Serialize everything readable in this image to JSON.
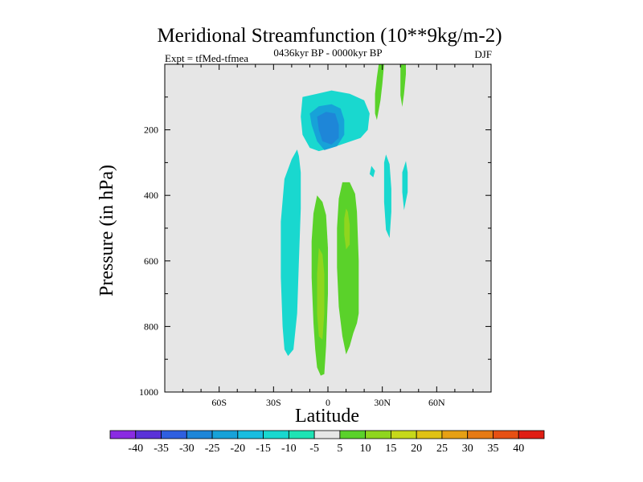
{
  "chart_data": {
    "type": "contour",
    "title": "Meridional Streamfunction (10**9kg/m-2)",
    "left_string": "Expt = tfMed-tfmea",
    "center_string": "0436kyr BP - 0000kyr BP",
    "right_string": "DJF",
    "xlabel": "Latitude",
    "ylabel": "Pressure (in hPa)",
    "x_ticks": [
      "60S",
      "30S",
      "0",
      "30N",
      "60N"
    ],
    "x_tick_values": [
      -60,
      -30,
      0,
      30,
      60
    ],
    "xlim": [
      -90,
      90
    ],
    "y_ticks": [
      "200",
      "400",
      "600",
      "800",
      "1000"
    ],
    "y_tick_values": [
      200,
      400,
      600,
      800,
      1000
    ],
    "ylim": [
      0,
      1000
    ],
    "y_inverted": true,
    "grid": false,
    "background": "#e6e6e6",
    "colorbar": {
      "labels": [
        "-40",
        "-35",
        "-30",
        "-25",
        "-20",
        "-15",
        "-10",
        "-5",
        "5",
        "10",
        "15",
        "20",
        "25",
        "30",
        "35",
        "40"
      ],
      "colors": [
        "#8a2be2",
        "#5a32d8",
        "#2f5fe0",
        "#1e86d8",
        "#17a2d8",
        "#19bde0",
        "#19d8cf",
        "#1ee3b4",
        "#e6e6e6",
        "#5ad22a",
        "#8fd61e",
        "#c6d81a",
        "#e0c214",
        "#e6a014",
        "#e67a14",
        "#e65014",
        "#e01e14"
      ]
    },
    "regions": [
      {
        "level": "-10",
        "color": "#19d8cf",
        "points": [
          [
            -14,
            100
          ],
          [
            -6,
            90
          ],
          [
            2,
            80
          ],
          [
            12,
            90
          ],
          [
            20,
            110
          ],
          [
            23,
            150
          ],
          [
            22,
            200
          ],
          [
            18,
            225
          ],
          [
            10,
            240
          ],
          [
            2,
            255
          ],
          [
            -5,
            265
          ],
          [
            -10,
            255
          ],
          [
            -14,
            215
          ],
          [
            -15,
            160
          ]
        ]
      },
      {
        "level": "-15",
        "color": "#17a2d8",
        "points": [
          [
            -10,
            150
          ],
          [
            -5,
            128
          ],
          [
            2,
            122
          ],
          [
            7,
            135
          ],
          [
            9,
            170
          ],
          [
            9,
            215
          ],
          [
            5,
            250
          ],
          [
            -2,
            262
          ],
          [
            -6,
            235
          ],
          [
            -9,
            185
          ]
        ]
      },
      {
        "level": "-20",
        "color": "#1e86d8",
        "points": [
          [
            -6,
            160
          ],
          [
            -1,
            145
          ],
          [
            4,
            150
          ],
          [
            6,
            185
          ],
          [
            6,
            225
          ],
          [
            2,
            245
          ],
          [
            -3,
            235
          ],
          [
            -5,
            200
          ]
        ]
      },
      {
        "level": "-10",
        "color": "#19d8cf",
        "points": [
          [
            -17,
            260
          ],
          [
            -20,
            290
          ],
          [
            -24,
            350
          ],
          [
            -26,
            480
          ],
          [
            -26,
            650
          ],
          [
            -25,
            800
          ],
          [
            -24,
            870
          ],
          [
            -22,
            890
          ],
          [
            -19,
            870
          ],
          [
            -17,
            760
          ],
          [
            -16,
            600
          ],
          [
            -15,
            440
          ],
          [
            -15,
            330
          ],
          [
            -16,
            280
          ]
        ]
      },
      {
        "level": "-10",
        "color": "#19d8cf",
        "points": [
          [
            32,
            275
          ],
          [
            34,
            305
          ],
          [
            35,
            380
          ],
          [
            35,
            450
          ],
          [
            34,
            530
          ],
          [
            32,
            505
          ],
          [
            31,
            420
          ],
          [
            31,
            340
          ],
          [
            31,
            300
          ]
        ]
      },
      {
        "level": "-10",
        "color": "#19d8cf",
        "points": [
          [
            24,
            310
          ],
          [
            26,
            325
          ],
          [
            25,
            345
          ],
          [
            23,
            335
          ]
        ]
      },
      {
        "level": "-10",
        "color": "#19d8cf",
        "points": [
          [
            43,
            295
          ],
          [
            44,
            330
          ],
          [
            44,
            390
          ],
          [
            42,
            445
          ],
          [
            41,
            390
          ],
          [
            41,
            330
          ]
        ]
      },
      {
        "level": "5",
        "color": "#5ad22a",
        "points": [
          [
            -6,
            400
          ],
          [
            -8,
            455
          ],
          [
            -9,
            540
          ],
          [
            -9,
            650
          ],
          [
            -8,
            790
          ],
          [
            -7,
            870
          ],
          [
            -6,
            925
          ],
          [
            -4,
            950
          ],
          [
            -2,
            945
          ],
          [
            -1,
            860
          ],
          [
            0,
            700
          ],
          [
            0,
            560
          ],
          [
            -1,
            460
          ],
          [
            -3,
            420
          ]
        ]
      },
      {
        "level": "10",
        "color": "#8fd61e",
        "points": [
          [
            -5,
            560
          ],
          [
            -6,
            640
          ],
          [
            -6,
            760
          ],
          [
            -5,
            830
          ],
          [
            -3,
            840
          ],
          [
            -2,
            760
          ],
          [
            -2,
            640
          ],
          [
            -3,
            580
          ]
        ]
      },
      {
        "level": "5",
        "color": "#5ad22a",
        "points": [
          [
            8,
            360
          ],
          [
            6,
            410
          ],
          [
            5,
            500
          ],
          [
            5,
            620
          ],
          [
            6,
            740
          ],
          [
            8,
            830
          ],
          [
            10,
            885
          ],
          [
            12,
            860
          ],
          [
            14,
            820
          ],
          [
            16,
            790
          ],
          [
            17,
            760
          ],
          [
            17,
            600
          ],
          [
            16,
            450
          ],
          [
            15,
            395
          ],
          [
            12,
            360
          ]
        ]
      },
      {
        "level": "10",
        "color": "#8fd61e",
        "points": [
          [
            10,
            440
          ],
          [
            9,
            470
          ],
          [
            9,
            520
          ],
          [
            10,
            565
          ],
          [
            12,
            550
          ],
          [
            12,
            490
          ],
          [
            11,
            450
          ]
        ]
      },
      {
        "level": "5",
        "color": "#5ad22a",
        "points": [
          [
            28,
            0
          ],
          [
            31,
            0
          ],
          [
            30,
            60
          ],
          [
            29,
            110
          ],
          [
            28,
            140
          ],
          [
            27,
            170
          ],
          [
            26,
            150
          ],
          [
            26,
            90
          ],
          [
            27,
            40
          ]
        ]
      },
      {
        "level": "5",
        "color": "#5ad22a",
        "points": [
          [
            40,
            0
          ],
          [
            43,
            0
          ],
          [
            43,
            30
          ],
          [
            42,
            90
          ],
          [
            41,
            130
          ],
          [
            40,
            95
          ],
          [
            40,
            40
          ]
        ]
      }
    ]
  }
}
